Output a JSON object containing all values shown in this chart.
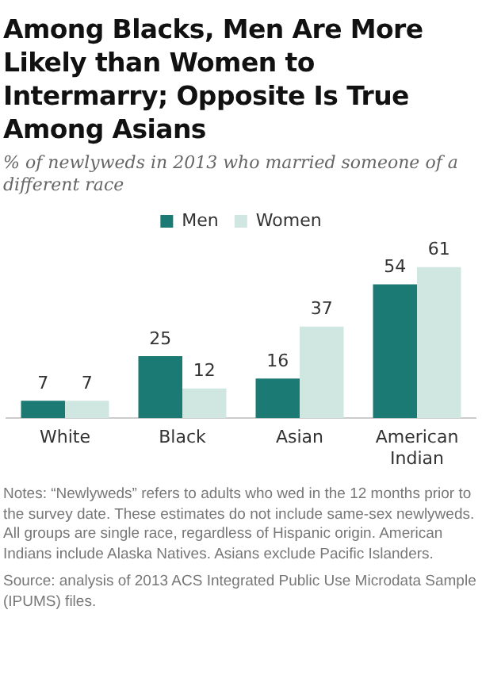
{
  "chart_data": {
    "type": "bar",
    "title": "Among Blacks, Men Are More Likely than Women to Intermarry; Opposite Is True Among Asians",
    "subtitle": "% of newlyweds in 2013 who married someone of a different race",
    "categories": [
      "White",
      "Black",
      "Asian",
      "American Indian"
    ],
    "series": [
      {
        "name": "Men",
        "color": "#1b7a73",
        "values": [
          7,
          25,
          16,
          54
        ]
      },
      {
        "name": "Women",
        "color": "#cfe7e0",
        "values": [
          7,
          12,
          37,
          61
        ]
      }
    ],
    "data_labels": true,
    "legend": "top",
    "grid": false,
    "annotations": [
      "Notes: “Newlyweds” refers to adults who wed in the 12 months prior to the survey date. These estimates do not include same-sex newlyweds. All groups are single race, regardless of Hispanic origin. American Indians include Alaska Natives. Asians exclude Pacific Islanders.",
      "Source: analysis of 2013 ACS Integrated Public Use Microdata Sample (IPUMS) files."
    ]
  }
}
